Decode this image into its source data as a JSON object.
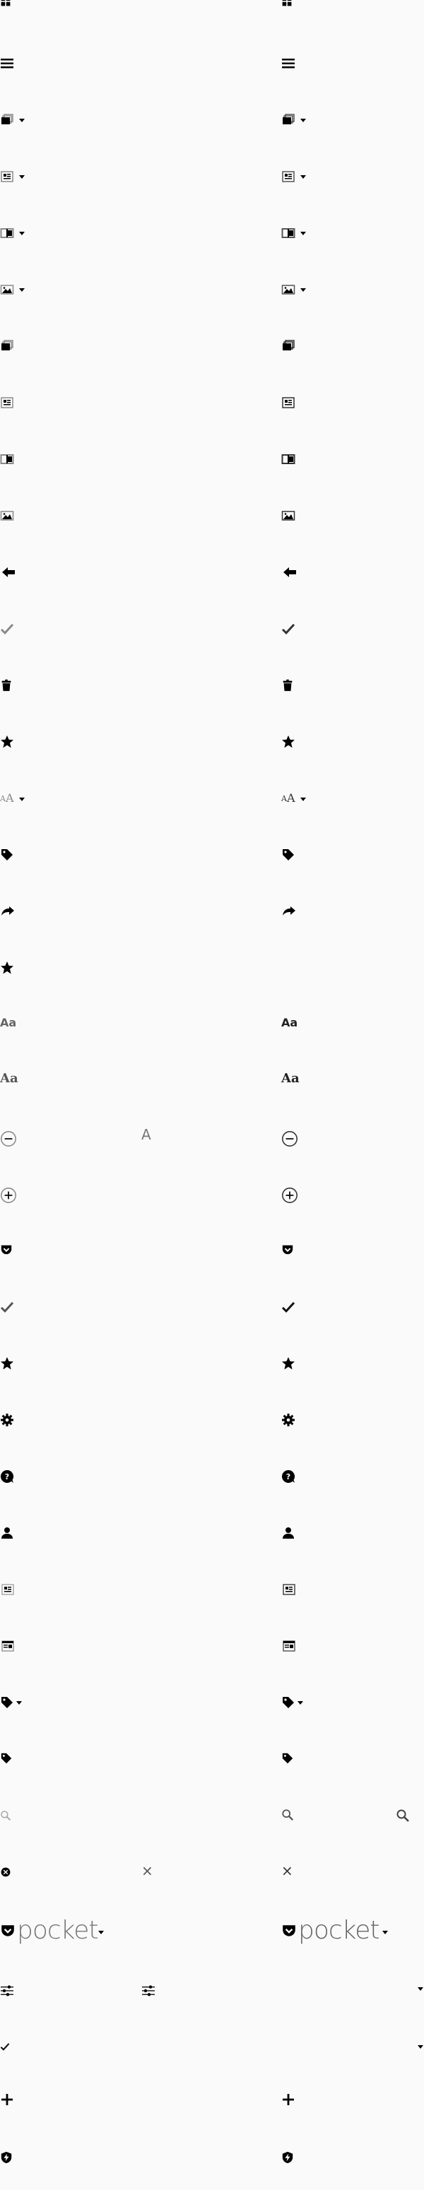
{
  "colors": {
    "left_gray": "#8a8a8a",
    "right_dark": "#333333",
    "star_gold": "#f2c10f",
    "pocket_red": "#ef4056"
  },
  "labels": {
    "font_small": "Aa",
    "font_serif": "Aa",
    "font_large_left": "A",
    "pocket_word": "pocket",
    "close_x": "×"
  },
  "icons": [
    "grid-icon",
    "list-icon",
    "archive-menu-icon",
    "article-menu-icon",
    "columns-menu-icon",
    "image-menu-icon",
    "archive-icon",
    "article-icon",
    "columns-icon",
    "image-icon",
    "back-arrow-icon",
    "check-icon",
    "trash-icon",
    "star-icon",
    "font-size-icon",
    "tag-icon",
    "share-icon",
    "favorite-star-icon",
    "font-sans-icon",
    "font-serif-icon",
    "minus-circle-icon",
    "plus-circle-icon",
    "pocket-icon",
    "checkmark-icon",
    "star-solid-icon",
    "gear-icon",
    "help-icon",
    "user-icon",
    "article-view-icon",
    "reader-view-icon",
    "tag-menu-icon",
    "tag-small-icon",
    "search-icon",
    "clear-search-icon",
    "pocket-logo",
    "filter-icon",
    "check-small-icon",
    "plus-icon",
    "premium-shield-icon"
  ]
}
